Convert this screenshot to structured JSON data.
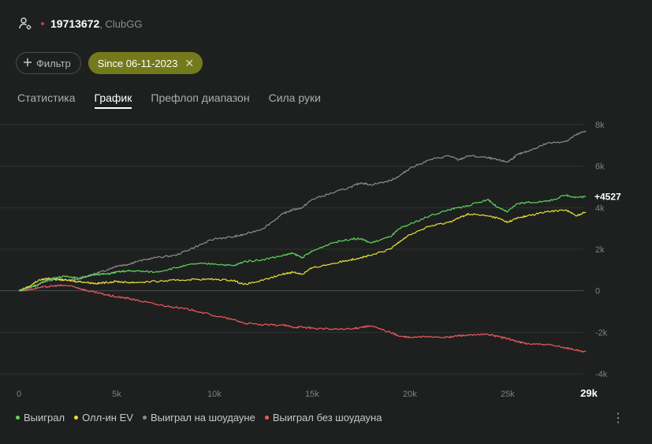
{
  "header": {
    "player_id": "19713672",
    "room": ", ClubGG",
    "dot_color": "#b8453e"
  },
  "filters": {
    "filter_label": "Фильтр",
    "active_chip": "Since 06-11-2023",
    "chip_color": "#737a1c"
  },
  "tabs": [
    {
      "label": "Статистика",
      "active": false
    },
    {
      "label": "График",
      "active": true
    },
    {
      "label": "Префлоп диапазон",
      "active": false
    },
    {
      "label": "Сила руки",
      "active": false
    }
  ],
  "chart_data": {
    "type": "line",
    "x_unit": "hands",
    "xlim": [
      0,
      29000
    ],
    "ylim": [
      -4000,
      8000
    ],
    "x_ticks": [
      {
        "value": 0,
        "label": "0"
      },
      {
        "value": 5000,
        "label": "5k"
      },
      {
        "value": 10000,
        "label": "10k"
      },
      {
        "value": 15000,
        "label": "15k"
      },
      {
        "value": 20000,
        "label": "20k"
      },
      {
        "value": 25000,
        "label": "25k"
      },
      {
        "value": 29000,
        "label": "29k"
      }
    ],
    "y_ticks": [
      {
        "value": 8000,
        "label": "8k"
      },
      {
        "value": 6000,
        "label": "6k"
      },
      {
        "value": 4000,
        "label": "4k"
      },
      {
        "value": 2000,
        "label": "2k"
      },
      {
        "value": 0,
        "label": "0"
      },
      {
        "value": -2000,
        "label": "-2k"
      },
      {
        "value": -4000,
        "label": "-4k"
      }
    ],
    "end_label": "+4527",
    "series": [
      {
        "name": "Выиграл на шоудауне",
        "color": "#8c8c8c",
        "x": [
          0,
          500,
          1000,
          1500,
          2000,
          2500,
          3000,
          3500,
          4000,
          4500,
          5000,
          5500,
          6000,
          7000,
          8000,
          9000,
          10000,
          11000,
          11500,
          12500,
          13500,
          14000,
          14500,
          15000,
          16000,
          17000,
          17500,
          18000,
          19000,
          19500,
          20000,
          21000,
          22000,
          22500,
          23000,
          24000,
          24500,
          25000,
          25500,
          26000,
          27000,
          28000,
          28500,
          29000
        ],
        "y": [
          0,
          150,
          300,
          500,
          550,
          500,
          550,
          700,
          850,
          1000,
          1200,
          1250,
          1400,
          1600,
          1700,
          2100,
          2500,
          2600,
          2700,
          3000,
          3700,
          3900,
          4000,
          4400,
          4700,
          5000,
          5200,
          5100,
          5300,
          5550,
          5900,
          6300,
          6500,
          6300,
          6500,
          6400,
          6300,
          6200,
          6550,
          6700,
          7100,
          7200,
          7500,
          7700
        ]
      },
      {
        "name": "Выиграл",
        "color": "#5fd35f",
        "x": [
          0,
          500,
          1000,
          1500,
          2000,
          2500,
          3000,
          3500,
          4000,
          4500,
          5000,
          5500,
          6000,
          7000,
          8000,
          9000,
          10000,
          11000,
          11500,
          12500,
          13500,
          14000,
          14500,
          15000,
          16000,
          17000,
          17500,
          18000,
          19000,
          19500,
          20000,
          21000,
          22000,
          22500,
          23000,
          24000,
          24500,
          25000,
          25500,
          26000,
          27000,
          28000,
          28500,
          29000
        ],
        "y": [
          0,
          150,
          300,
          550,
          650,
          700,
          600,
          700,
          800,
          800,
          900,
          950,
          950,
          900,
          1100,
          1300,
          1300,
          1200,
          1400,
          1500,
          1700,
          1800,
          1600,
          1900,
          2300,
          2500,
          2500,
          2300,
          2600,
          3000,
          3200,
          3600,
          3900,
          4000,
          4100,
          4400,
          4000,
          3800,
          4200,
          4250,
          4300,
          4600,
          4500,
          4527
        ]
      },
      {
        "name": "Олл-ин EV",
        "color": "#e8e03a",
        "x": [
          0,
          500,
          1000,
          1500,
          2000,
          2500,
          3000,
          3500,
          4000,
          4500,
          5000,
          5500,
          6000,
          7000,
          8000,
          9000,
          10000,
          11000,
          11500,
          12500,
          13500,
          14000,
          14500,
          15000,
          16000,
          17000,
          17500,
          18000,
          19000,
          19500,
          20000,
          21000,
          22000,
          22500,
          23000,
          24000,
          24500,
          25000,
          25500,
          26000,
          27000,
          28000,
          28500,
          29000
        ],
        "y": [
          0,
          200,
          500,
          600,
          550,
          500,
          450,
          400,
          350,
          400,
          450,
          400,
          400,
          450,
          500,
          550,
          550,
          500,
          300,
          500,
          800,
          900,
          800,
          1100,
          1300,
          1500,
          1600,
          1700,
          2000,
          2400,
          2700,
          3100,
          3300,
          3500,
          3700,
          3600,
          3500,
          3300,
          3500,
          3600,
          3800,
          3900,
          3600,
          3800
        ]
      },
      {
        "name": "Выиграл без шоудауна",
        "color": "#ee5b5b",
        "x": [
          0,
          500,
          1000,
          1500,
          2000,
          2500,
          3000,
          3500,
          4000,
          4500,
          5000,
          5500,
          6000,
          7000,
          8000,
          9000,
          10000,
          11000,
          11500,
          12500,
          13500,
          14000,
          14500,
          15000,
          16000,
          17000,
          17500,
          18000,
          19000,
          19500,
          20000,
          21000,
          22000,
          22500,
          23000,
          24000,
          24500,
          25000,
          25500,
          26000,
          27000,
          28000,
          28500,
          29000
        ],
        "y": [
          0,
          50,
          150,
          200,
          250,
          250,
          150,
          0,
          -100,
          -200,
          -300,
          -350,
          -450,
          -650,
          -800,
          -950,
          -1200,
          -1400,
          -1550,
          -1650,
          -1650,
          -1750,
          -1750,
          -1800,
          -1850,
          -1850,
          -1750,
          -1700,
          -2000,
          -2200,
          -2250,
          -2200,
          -2250,
          -2150,
          -2150,
          -2100,
          -2200,
          -2300,
          -2450,
          -2550,
          -2600,
          -2750,
          -2850,
          -2950
        ]
      }
    ]
  },
  "legend": [
    {
      "label": "Выиграл",
      "color": "#5fd35f"
    },
    {
      "label": "Олл-ин EV",
      "color": "#e8e03a"
    },
    {
      "label": "Выиграл на шоудауне",
      "color": "#8c8c8c"
    },
    {
      "label": "Выиграл без шоудауна",
      "color": "#ee5b5b"
    }
  ]
}
